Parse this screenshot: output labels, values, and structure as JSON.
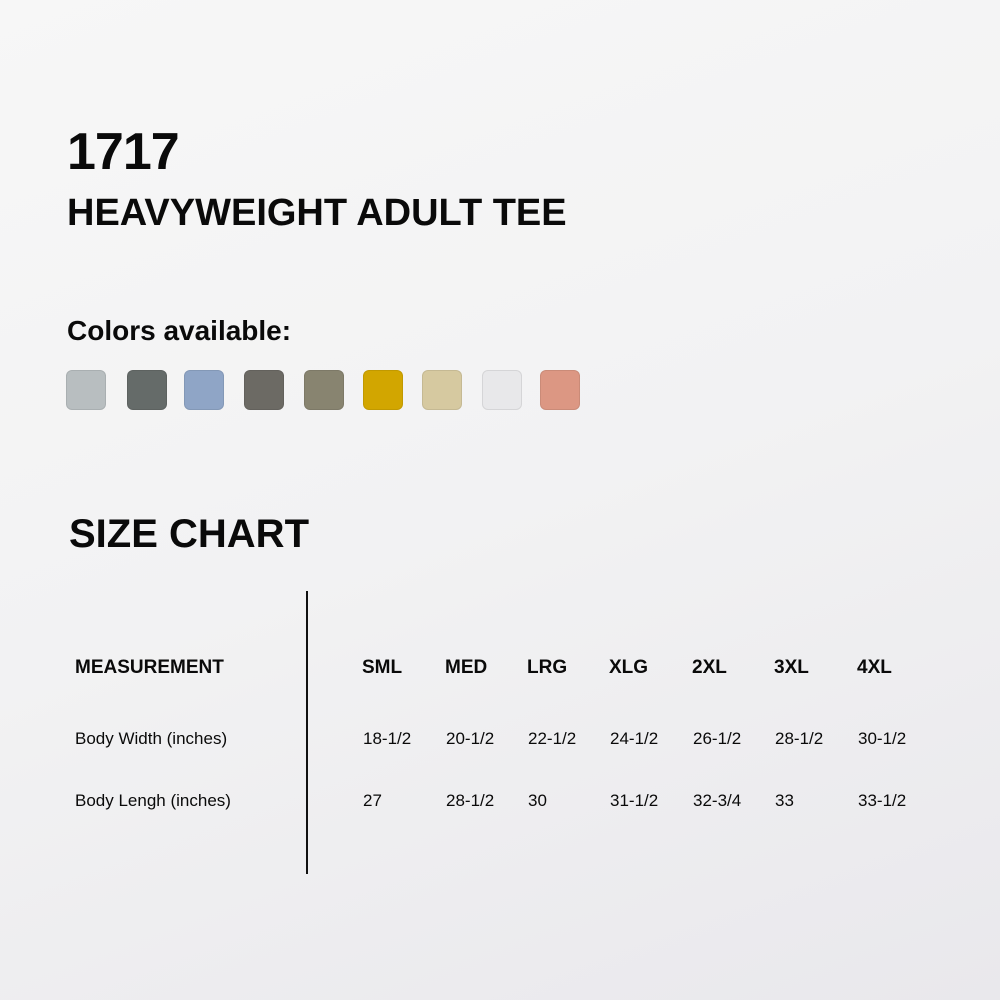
{
  "product": {
    "code": "1717",
    "name": "HEAVYWEIGHT ADULT TEE"
  },
  "colors": {
    "label": "Colors available:",
    "swatches": [
      "#b8bec0",
      "#656b69",
      "#8fa5c6",
      "#6c6a64",
      "#888470",
      "#d2a600",
      "#d6c9a0",
      "#e8e8ea",
      "#dc9783"
    ]
  },
  "size_chart": {
    "title": "SIZE CHART",
    "header": "MEASUREMENT",
    "sizes": [
      "SML",
      "MED",
      "LRG",
      "XLG",
      "2XL",
      "3XL",
      "4XL"
    ],
    "rows": [
      {
        "label": "Body Width (inches)",
        "values": [
          "18-1/2",
          "20-1/2",
          "22-1/2",
          "24-1/2",
          "26-1/2",
          "28-1/2",
          "30-1/2"
        ]
      },
      {
        "label": "Body Lengh (inches)",
        "values": [
          "27",
          "28-1/2",
          "30",
          "31-1/2",
          "32-3/4",
          "33",
          "33-1/2"
        ]
      }
    ]
  }
}
